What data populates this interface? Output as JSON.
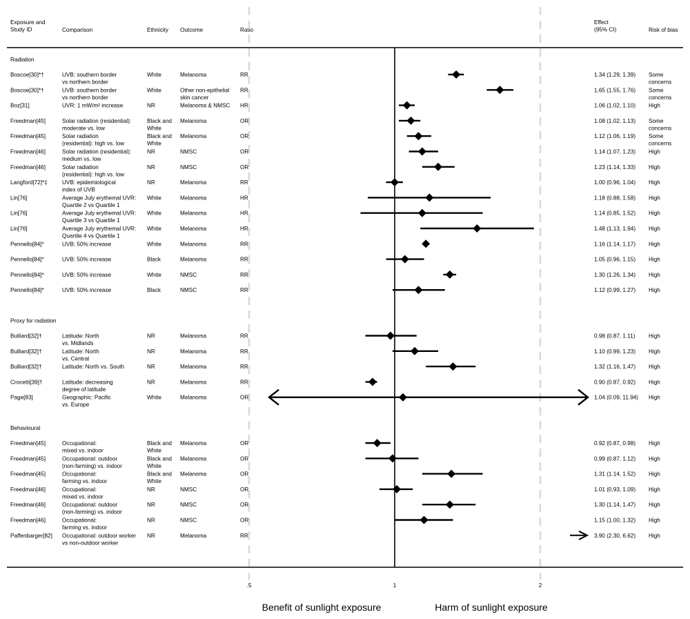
{
  "chart_data": {
    "type": "forest",
    "headers": {
      "study": [
        "Exposure and",
        "Study ID"
      ],
      "comparison": "Comparison",
      "ethnicity": "Ethnicity",
      "outcome": "Outcome",
      "ratio": "Ratio",
      "effect": [
        "Effect",
        "(95% CI)"
      ],
      "risk": "Risk of bias"
    },
    "x_ticks": [
      {
        "label": ".5",
        "value": 0.5
      },
      {
        "label": "1",
        "value": 1
      },
      {
        "label": "2",
        "value": 2
      }
    ],
    "x_scale": "log",
    "null_value": 1,
    "xlabel_left": "Benefit of sunlight exposure",
    "xlabel_right": "Harm of sunlight exposure",
    "groups": [
      {
        "label": "Radiation",
        "rows": [
          {
            "study": "Boscoe[30]*†",
            "comparison": [
              "UVB: southern border",
              "vs northern border"
            ],
            "ethnicity": [
              "White"
            ],
            "outcome": [
              "Melanoma"
            ],
            "ratio": "RR",
            "est": 1.34,
            "lo": 1.29,
            "hi": 1.39,
            "effect": "1.34 (1.29, 1.39)",
            "risk": [
              "Some",
              "concerns"
            ]
          },
          {
            "study": "Boscoe[30]*†",
            "comparison": [
              "UVB: southern border",
              "vs northern border"
            ],
            "ethnicity": [
              "White"
            ],
            "outcome": [
              "Other non-epithelial",
              "skin cancer"
            ],
            "ratio": "RR",
            "est": 1.65,
            "lo": 1.55,
            "hi": 1.76,
            "effect": "1.65 (1.55, 1.76)",
            "risk": [
              "Some",
              "concerns"
            ]
          },
          {
            "study": "Boz[31]",
            "comparison": [
              "UVR: 1 mW/m² increase"
            ],
            "ethnicity": [
              "NR"
            ],
            "outcome": [
              "Melanoma & NMSC"
            ],
            "ratio": "HR",
            "est": 1.06,
            "lo": 1.02,
            "hi": 1.1,
            "effect": "1.06 (1.02, 1.10)",
            "risk": [
              "High"
            ]
          },
          {
            "study": "Freedman[45]",
            "comparison": [
              "Solar radiation (residential):",
              "moderate vs. low"
            ],
            "ethnicity": [
              "Black and",
              "White"
            ],
            "outcome": [
              "Melanoma"
            ],
            "ratio": "OR",
            "est": 1.08,
            "lo": 1.02,
            "hi": 1.13,
            "effect": "1.08 (1.02, 1.13)",
            "risk": [
              "Some",
              "concerns"
            ]
          },
          {
            "study": "Freedman[45]",
            "comparison": [
              "Solar radiation",
              "(residential): high vs. low"
            ],
            "ethnicity": [
              "Black and",
              "White"
            ],
            "outcome": [
              "Melanoma"
            ],
            "ratio": "OR",
            "est": 1.12,
            "lo": 1.06,
            "hi": 1.19,
            "effect": "1.12 (1.06, 1.19)",
            "risk": [
              "Some",
              "concerns"
            ]
          },
          {
            "study": "Freedman[46]",
            "comparison": [
              "Solar radiation (residential):",
              "medium vs. low"
            ],
            "ethnicity": [
              "NR"
            ],
            "outcome": [
              "NMSC"
            ],
            "ratio": "OR",
            "est": 1.14,
            "lo": 1.07,
            "hi": 1.23,
            "effect": "1.14 (1.07, 1.23)",
            "risk": [
              "High"
            ]
          },
          {
            "study": "Freedman[46]",
            "comparison": [
              "Solar radiation",
              "(residential): high vs. low"
            ],
            "ethnicity": [
              "NR"
            ],
            "outcome": [
              "NMSC"
            ],
            "ratio": "OR",
            "est": 1.23,
            "lo": 1.14,
            "hi": 1.33,
            "effect": "1.23 (1.14, 1.33)",
            "risk": [
              "High"
            ]
          },
          {
            "study": "Langford[72]*‡",
            "comparison": [
              "UVB: epidemiological",
              "index of UVB"
            ],
            "ethnicity": [
              "NR"
            ],
            "outcome": [
              "Melanoma"
            ],
            "ratio": "RR",
            "est": 1.0,
            "lo": 0.96,
            "hi": 1.04,
            "effect": "1.00 (0.96, 1.04)",
            "risk": [
              "High"
            ]
          },
          {
            "study": "Lin[76]",
            "comparison": [
              "Average July erythemal UVR:",
              "Quartile 2 vs Quartile 1"
            ],
            "ethnicity": [
              "White"
            ],
            "outcome": [
              "Melanoma"
            ],
            "ratio": "HR",
            "est": 1.18,
            "lo": 0.88,
            "hi": 1.58,
            "effect": "1.18 (0.88, 1.58)",
            "risk": [
              "High"
            ]
          },
          {
            "study": "Lin[76]",
            "comparison": [
              "Average July erythemal UVR:",
              "Quartile 3 vs Quartile 1"
            ],
            "ethnicity": [
              "White"
            ],
            "outcome": [
              "Melanoma"
            ],
            "ratio": "HR",
            "est": 1.14,
            "lo": 0.85,
            "hi": 1.52,
            "effect": "1.14 (0.85, 1.52)",
            "risk": [
              "High"
            ]
          },
          {
            "study": "Lin[76]",
            "comparison": [
              "Average July erythemal UVR:",
              "Quartile 4 vs Quartile 1"
            ],
            "ethnicity": [
              "White"
            ],
            "outcome": [
              "Melanoma"
            ],
            "ratio": "HR",
            "est": 1.48,
            "lo": 1.13,
            "hi": 1.94,
            "effect": "1.48 (1.13, 1.94)",
            "risk": [
              "High"
            ]
          },
          {
            "study": "Pennello[84]*",
            "comparison": [
              "UVB: 50% increase"
            ],
            "ethnicity": [
              "White"
            ],
            "outcome": [
              "Melanoma"
            ],
            "ratio": "RR",
            "est": 1.16,
            "lo": 1.14,
            "hi": 1.17,
            "effect": "1.16 (1.14, 1.17)",
            "risk": [
              "High"
            ]
          },
          {
            "study": "Pennello[84]*",
            "comparison": [
              "UVB: 50% increase"
            ],
            "ethnicity": [
              "Black"
            ],
            "outcome": [
              "Melanoma"
            ],
            "ratio": "RR",
            "est": 1.05,
            "lo": 0.96,
            "hi": 1.15,
            "effect": "1.05 (0.96, 1.15)",
            "risk": [
              "High"
            ]
          },
          {
            "study": "Pennello[84]*",
            "comparison": [
              "UVB: 50% increase"
            ],
            "ethnicity": [
              "White"
            ],
            "outcome": [
              "NMSC"
            ],
            "ratio": "RR",
            "est": 1.3,
            "lo": 1.26,
            "hi": 1.34,
            "effect": "1.30 (1.26, 1.34)",
            "risk": [
              "High"
            ]
          },
          {
            "study": "Pennello[84]*",
            "comparison": [
              "UVB: 50% increase"
            ],
            "ethnicity": [
              "Black"
            ],
            "outcome": [
              "NMSC"
            ],
            "ratio": "RR",
            "est": 1.12,
            "lo": 0.99,
            "hi": 1.27,
            "effect": "1.12 (0.99, 1.27)",
            "risk": [
              "High"
            ]
          }
        ]
      },
      {
        "label": "Proxy for radiation",
        "rows": [
          {
            "study": "Bulliard[32]†",
            "comparison": [
              "Latitude: North",
              "vs. Midlands"
            ],
            "ethnicity": [
              "NR"
            ],
            "outcome": [
              "Melanoma"
            ],
            "ratio": "RR",
            "est": 0.98,
            "lo": 0.87,
            "hi": 1.11,
            "effect": "0.98 (0.87, 1.11)",
            "risk": [
              "High"
            ]
          },
          {
            "study": "Bulliard[32]†",
            "comparison": [
              "Latitude: North",
              "vs. Central"
            ],
            "ethnicity": [
              "NR"
            ],
            "outcome": [
              "Melanoma"
            ],
            "ratio": "RR",
            "est": 1.1,
            "lo": 0.99,
            "hi": 1.23,
            "effect": "1.10 (0.99, 1.23)",
            "risk": [
              "High"
            ]
          },
          {
            "study": "Bulliard[32]†",
            "comparison": [
              "Latitude: North vs. South"
            ],
            "ethnicity": [
              "NR"
            ],
            "outcome": [
              "Melanoma"
            ],
            "ratio": "RR",
            "est": 1.32,
            "lo": 1.16,
            "hi": 1.47,
            "effect": "1.32 (1.16, 1.47)",
            "risk": [
              "High"
            ]
          },
          {
            "study": "Crocetti[39]†",
            "comparison": [
              "Latitude: decreasing",
              "degree of latitude"
            ],
            "ethnicity": [
              "NR"
            ],
            "outcome": [
              "Melanoma"
            ],
            "ratio": "RR",
            "est": 0.9,
            "lo": 0.87,
            "hi": 0.92,
            "effect": "0.90 (0.87, 0.92)",
            "risk": [
              "High"
            ]
          },
          {
            "study": "Page[83]",
            "comparison": [
              "Geographic: Pacific",
              "vs. Europe"
            ],
            "ethnicity": [
              "White"
            ],
            "outcome": [
              "Melanoma"
            ],
            "ratio": "OR",
            "est": 1.04,
            "lo": 0.09,
            "hi": 11.94,
            "effect": "1.04 (0.09, 11.94)",
            "risk": [
              "High"
            ]
          }
        ]
      },
      {
        "label": "Behavioural",
        "rows": [
          {
            "study": "Freedman[45]",
            "comparison": [
              "Occupational:",
              "mixed vs. indoor"
            ],
            "ethnicity": [
              "Black and",
              "White"
            ],
            "outcome": [
              "Melanoma"
            ],
            "ratio": "OR",
            "est": 0.92,
            "lo": 0.87,
            "hi": 0.98,
            "effect": "0.92 (0.87, 0.98)",
            "risk": [
              "High"
            ]
          },
          {
            "study": "Freedman[45]",
            "comparison": [
              "Occupational: outdoor",
              "(non-farming) vs. indoor"
            ],
            "ethnicity": [
              "Black and",
              "White"
            ],
            "outcome": [
              "Melanoma"
            ],
            "ratio": "OR",
            "est": 0.99,
            "lo": 0.87,
            "hi": 1.12,
            "effect": "0.99 (0.87, 1.12)",
            "risk": [
              "High"
            ]
          },
          {
            "study": "Freedman[45]",
            "comparison": [
              "Occupational:",
              "farming vs. indoor"
            ],
            "ethnicity": [
              "Black and",
              "White"
            ],
            "outcome": [
              "Melanoma"
            ],
            "ratio": "OR",
            "est": 1.31,
            "lo": 1.14,
            "hi": 1.52,
            "effect": "1.31 (1.14, 1.52)",
            "risk": [
              "High"
            ]
          },
          {
            "study": "Freedman[46]",
            "comparison": [
              "Occupational:",
              "mixed vs. indoor"
            ],
            "ethnicity": [
              "NR"
            ],
            "outcome": [
              "NMSC"
            ],
            "ratio": "OR",
            "est": 1.01,
            "lo": 0.93,
            "hi": 1.09,
            "effect": "1.01 (0.93, 1.09)",
            "risk": [
              "High"
            ]
          },
          {
            "study": "Freedman[46]",
            "comparison": [
              "Occupational: outdoor",
              "(non-farming) vs. indoor"
            ],
            "ethnicity": [
              "NR"
            ],
            "outcome": [
              "NMSC"
            ],
            "ratio": "OR",
            "est": 1.3,
            "lo": 1.14,
            "hi": 1.47,
            "effect": "1.30 (1.14, 1.47)",
            "risk": [
              "High"
            ]
          },
          {
            "study": "Freedman[46]",
            "comparison": [
              "Occupational:",
              "farming vs. indoor"
            ],
            "ethnicity": [
              "NR"
            ],
            "outcome": [
              "NMSC"
            ],
            "ratio": "OR",
            "est": 1.15,
            "lo": 1.0,
            "hi": 1.32,
            "effect": "1.15 (1.00, 1.32)",
            "risk": [
              "High"
            ]
          },
          {
            "study": "Paffenbarger[82]",
            "comparison": [
              "Occupational: outdoor worker",
              "vs non-outdoor worker"
            ],
            "ethnicity": [
              "NR"
            ],
            "outcome": [
              "Melanoma"
            ],
            "ratio": "RR",
            "est": 3.9,
            "lo": 2.3,
            "hi": 6.62,
            "effect": "3.90 (2.30, 6.62)",
            "risk": [
              "High"
            ]
          }
        ]
      }
    ]
  }
}
